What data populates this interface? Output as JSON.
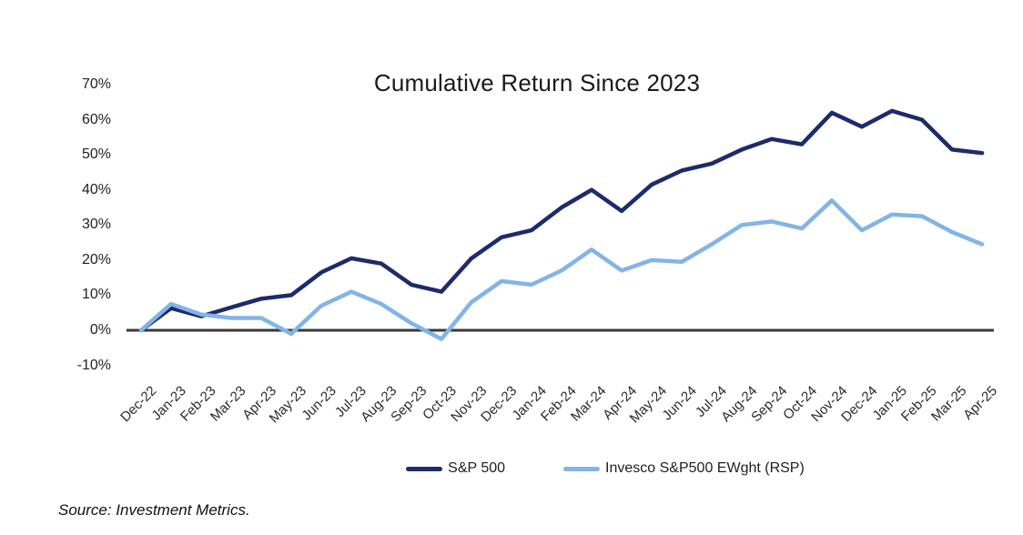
{
  "chart": {
    "title": "Cumulative Return Since 2023",
    "source": "Source: Investment Metrics."
  },
  "chart_data": {
    "type": "line",
    "title": "Cumulative Return Since 2023",
    "categories": [
      "Dec-22",
      "Jan-23",
      "Feb-23",
      "Mar-23",
      "Apr-23",
      "May-23",
      "Jun-23",
      "Jul-23",
      "Aug-23",
      "Sep-23",
      "Oct-23",
      "Nov-23",
      "Dec-23",
      "Jan-24",
      "Feb-24",
      "Mar-24",
      "Apr-24",
      "May-24",
      "Jun-24",
      "Jul-24",
      "Aug-24",
      "Sep-24",
      "Oct-24",
      "Nov-24",
      "Dec-24",
      "Jan-25",
      "Feb-25",
      "Mar-25",
      "Apr-25"
    ],
    "series": [
      {
        "name": "S&P 500",
        "color": "#1c2b6b",
        "values": [
          0,
          6.3,
          4.0,
          6.5,
          9.0,
          10.0,
          16.5,
          20.5,
          19.0,
          13.0,
          11.0,
          20.5,
          26.5,
          28.5,
          35.0,
          40.0,
          34.0,
          41.5,
          45.5,
          47.5,
          51.5,
          54.5,
          53.0,
          62.0,
          58.0,
          62.5,
          60.0,
          51.5,
          50.5
        ]
      },
      {
        "name": "Invesco S&P500 EWght (RSP)",
        "color": "#82b4e6",
        "values": [
          0,
          7.5,
          4.5,
          3.5,
          3.5,
          -1.0,
          7.0,
          11.0,
          7.5,
          2.0,
          -2.5,
          8.0,
          14.0,
          13.0,
          17.0,
          23.0,
          17.0,
          20.0,
          19.5,
          24.5,
          30.0,
          31.0,
          29.0,
          37.0,
          28.5,
          33.0,
          32.5,
          28.0,
          24.5
        ]
      }
    ],
    "xlabel": "",
    "ylabel": "",
    "ylim": [
      -10,
      70
    ],
    "ytick_values": [
      70,
      60,
      50,
      40,
      30,
      20,
      10,
      0,
      -10
    ],
    "ytick_labels": [
      "70%",
      "60%",
      "50%",
      "40%",
      "30%",
      "20%",
      "10%",
      "0%",
      "-10%"
    ],
    "grid": false,
    "legend_position": "bottom",
    "zero_axis_color": "#3a3a3a",
    "source": "Source: Investment Metrics."
  }
}
